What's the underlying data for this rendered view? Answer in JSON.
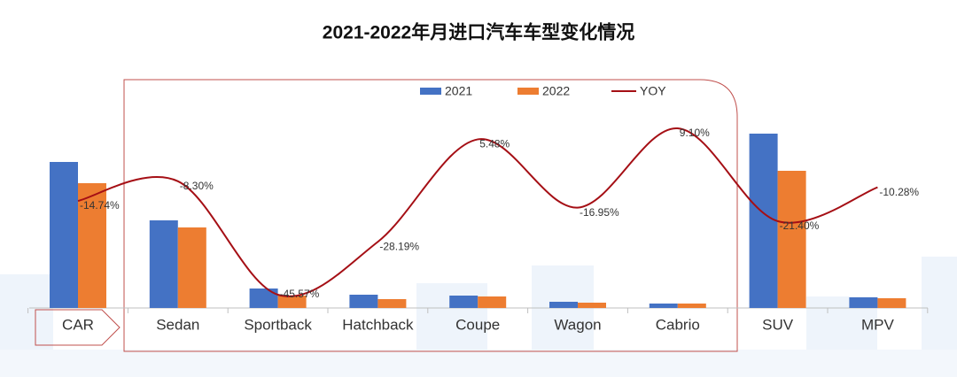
{
  "chart_data": {
    "type": "bar",
    "title": "2021-2022年月进口汽车车型变化情况",
    "categories": [
      "CAR",
      "Sedan",
      "Sportback",
      "Hatchback",
      "Coupe",
      "Wagon",
      "Cabrio",
      "SUV",
      "MPV"
    ],
    "series": [
      {
        "name": "2021",
        "color": "#4472c4",
        "values": [
          165,
          99,
          22,
          15,
          14,
          7,
          5,
          197,
          12
        ]
      },
      {
        "name": "2022",
        "color": "#ed7d31",
        "values": [
          141,
          91,
          14,
          10,
          13,
          6,
          5,
          155,
          11
        ]
      },
      {
        "name": "YOY",
        "color": "#a50f15",
        "type": "line",
        "values": [
          -14.74,
          -8.3,
          -45.57,
          -28.19,
          5.48,
          -16.95,
          9.1,
          -21.4,
          -10.28
        ],
        "value_labels": [
          "-14.74%",
          "-8.30%",
          "-45.57%",
          "-28.19%",
          "5.48%",
          "-16.95%",
          "9.10%",
          "-21.40%",
          "-10.28%"
        ]
      }
    ],
    "legend": "top"
  }
}
